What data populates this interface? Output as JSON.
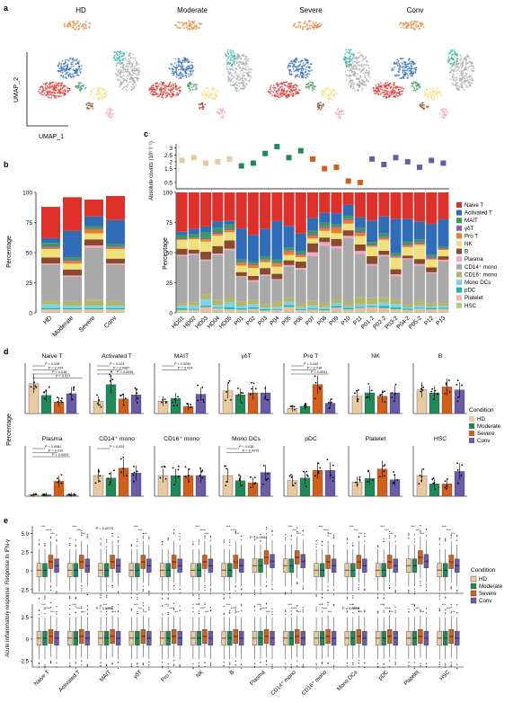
{
  "panel_letters": [
    "a",
    "b",
    "c",
    "d",
    "e"
  ],
  "colors": {
    "Naive T": "#e0302a",
    "Activated T": "#2f6db8",
    "MAIT": "#3a9a5a",
    "γδT": "#9b59b6",
    "Pro T": "#e67e22",
    "NK": "#f0e07a",
    "B": "#8b4a2b",
    "Plasma": "#f4a6c8",
    "CD14+ mono": "#a9a9a9",
    "CD16+ mono": "#b5b56a",
    "Mono DCs": "#7fd3e6",
    "pDC": "#1fb5a5",
    "Platelet": "#f6b6a8",
    "HSC": "#a8d08d",
    "HD": "#e8c9a0",
    "Moderate": "#1d8a5a",
    "Severe": "#d2601a",
    "Conv": "#6a5ba8"
  },
  "panel_a": {
    "titles": [
      "HD",
      "Moderate",
      "Severe",
      "Conv"
    ],
    "xlabel": "UMAP_1",
    "ylabel": "UMAP_2"
  },
  "panel_b": {
    "ylabel": "Percentage",
    "yticks": [
      "0",
      "25",
      "50",
      "75",
      "100"
    ],
    "categories": [
      "HD",
      "Moderate",
      "Severe",
      "Conv"
    ]
  },
  "panel_c": {
    "ylabel_top": "Absolute counts (10⁹ l⁻¹)",
    "yticks_top": [
      "0.5",
      "1.5",
      "2",
      "2.5",
      "3"
    ],
    "ylabel_bottom": "Percentage",
    "yticks_bottom": [
      "0",
      "25",
      "50",
      "75",
      "100"
    ],
    "samples": [
      "HD01",
      "HD02",
      "HD03",
      "HD04",
      "HD05",
      "P01",
      "P02",
      "P03",
      "P04",
      "P05",
      "P06",
      "P07",
      "P08",
      "P09",
      "P10",
      "P11",
      "P01-2",
      "P02-2",
      "P03-2",
      "P04-2",
      "P05-2",
      "P12",
      "P13"
    ],
    "legend": [
      "Naive T",
      "Activated T",
      "MAIT",
      "γδT",
      "Pro T",
      "NK",
      "B",
      "Plasma",
      "CD14⁺ mono",
      "CD16⁺ mono",
      "Mono DCs",
      "pDC",
      "Platelet",
      "HSC"
    ]
  },
  "panel_d": {
    "ylabel": "Percentage",
    "row1": [
      "Naive T",
      "Activated T",
      "MAIT",
      "γδT",
      "Pro T",
      "NK",
      "B"
    ],
    "row2": [
      "Plasma",
      "CD14⁺ mono",
      "CD16⁺ mono",
      "Mono DCs",
      "pDC",
      "Platelet",
      "HSC"
    ],
    "legend_title": "Condition",
    "legend": [
      "HD",
      "Moderate",
      "Severe",
      "Conv"
    ],
    "pvals": {
      "naive": [
        "P = 0.028",
        "P = 0.029",
        "P = 0.018",
        "P = 0.017"
      ],
      "act": [
        "P = 0.024",
        "P = 0.0087",
        "P = 0.0035"
      ],
      "mait": [
        "P = 0.0094",
        "P = 0.024"
      ],
      "prot": [
        "P = 0.042",
        "P = 0.016",
        "P = 0.0041"
      ],
      "plasma": [
        "P = 0.0081",
        "P = 0.019",
        "P = 0.0029"
      ],
      "cd14": [
        "P = 0.024"
      ],
      "monodc": [
        "P = 0.016",
        "P = 0.0075"
      ]
    }
  },
  "panel_e": {
    "ylabel1": "Response to IFN-γ",
    "ylabel2": "Acute inflammatory response",
    "yticks1": [
      "-2.5",
      "0",
      "2.5",
      "5.0"
    ],
    "yticks2": [
      "-2.5",
      "0",
      "2.5"
    ],
    "categories": [
      "Naive T",
      "Activated T",
      "MAIT",
      "γδT",
      "Pro T",
      "NK",
      "B",
      "Plasma",
      "CD14⁺ mono",
      "CD16⁺ mono",
      "Mono DCs",
      "pDC",
      "Platelet",
      "HSC"
    ],
    "legend_title": "Condition",
    "legend": [
      "HD",
      "Moderate",
      "Severe",
      "Conv"
    ],
    "pvals": {
      "mait": "P = 0.0070",
      "plasma": "P = 0.0041",
      "mait2": "P = 0.0045",
      "monodc2": "P = 0.0016"
    },
    "stars": "***"
  }
}
